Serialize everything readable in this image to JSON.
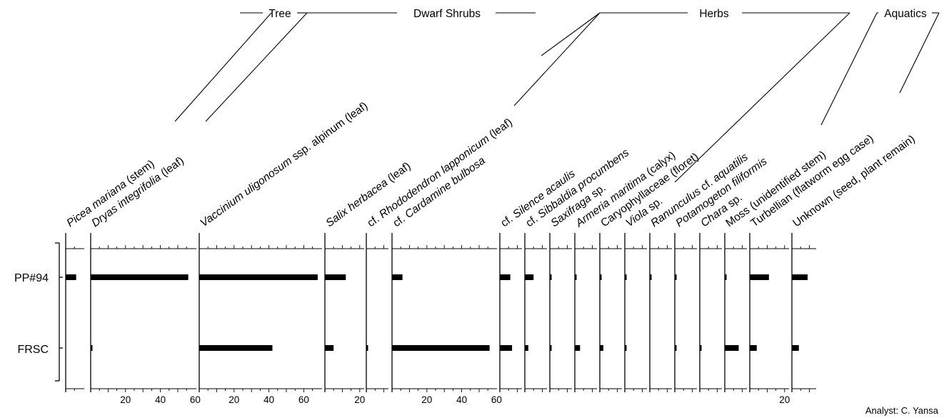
{
  "chart_data": {
    "type": "bar",
    "orientation": "horizontal",
    "samples": [
      "PP#94",
      "FRSC"
    ],
    "groups": [
      {
        "label": "Tree"
      },
      {
        "label": "Dwarf Shrubs"
      },
      {
        "label": "Herbs"
      },
      {
        "label": "Aquatics"
      }
    ],
    "taxa": [
      {
        "parts": [
          [
            "Picea mariana",
            true
          ],
          [
            " (stem)",
            false
          ]
        ],
        "group": 0,
        "values": [
          6,
          0
        ],
        "axis_max": 12,
        "tick_labels": []
      },
      {
        "parts": [
          [
            "Dryas integrifolia",
            true
          ],
          [
            " (leaf)",
            false
          ]
        ],
        "group": 1,
        "values": [
          56,
          1
        ],
        "axis_max": 65,
        "tick_labels": [
          "20",
          "40",
          "60"
        ]
      },
      {
        "parts": [
          [
            "Vaccinium uligonosum",
            true
          ],
          [
            " ssp. alpinum (leaf)",
            false
          ]
        ],
        "group": 1,
        "values": [
          68,
          42
        ],
        "axis_max": 76,
        "tick_labels": [
          "20",
          "40",
          "60"
        ]
      },
      {
        "parts": [
          [
            "Salix herbacea",
            true
          ],
          [
            " (leaf)",
            false
          ]
        ],
        "group": 1,
        "values": [
          12,
          5
        ],
        "axis_max": 23,
        "tick_labels": [
          "20"
        ]
      },
      {
        "parts": [
          [
            "cf. ",
            false
          ],
          [
            "Rhododendron lapponicum",
            true
          ],
          [
            " (leaf)",
            false
          ]
        ],
        "group": 1,
        "values": [
          0,
          1
        ],
        "axis_max": 12,
        "tick_labels": []
      },
      {
        "parts": [
          [
            "cf. ",
            false
          ],
          [
            "Cardamine bulbosa",
            true
          ]
        ],
        "group": 2,
        "values": [
          6,
          56
        ],
        "axis_max": 64,
        "tick_labels": [
          "20",
          "40",
          "60"
        ]
      },
      {
        "parts": [
          [
            "cf. ",
            false
          ],
          [
            "Silence acaulis",
            true
          ]
        ],
        "group": 2,
        "values": [
          6,
          7
        ],
        "axis_max": 12,
        "tick_labels": []
      },
      {
        "parts": [
          [
            "cf. ",
            false
          ],
          [
            "Sibbaldia procumbens",
            true
          ]
        ],
        "group": 2,
        "values": [
          5,
          2
        ],
        "axis_max": 12,
        "tick_labels": []
      },
      {
        "parts": [
          [
            "Saxifraga",
            true
          ],
          [
            " sp.",
            false
          ]
        ],
        "group": 2,
        "values": [
          1,
          1
        ],
        "axis_max": 12,
        "tick_labels": []
      },
      {
        "parts": [
          [
            "Armeria maritima",
            true
          ],
          [
            " (calyx)",
            false
          ]
        ],
        "group": 2,
        "values": [
          1,
          3
        ],
        "axis_max": 12,
        "tick_labels": []
      },
      {
        "parts": [
          [
            "Caryophyllaceae (floret)",
            false
          ]
        ],
        "group": 2,
        "values": [
          1,
          2
        ],
        "axis_max": 12,
        "tick_labels": []
      },
      {
        "parts": [
          [
            "Viola",
            true
          ],
          [
            " sp.",
            false
          ]
        ],
        "group": 2,
        "values": [
          1,
          1
        ],
        "axis_max": 12,
        "tick_labels": []
      },
      {
        "parts": [
          [
            "Ranunculus",
            true
          ],
          [
            " cf. ",
            false
          ],
          [
            "aquatilis",
            true
          ]
        ],
        "group": 2,
        "values": [
          1,
          0
        ],
        "axis_max": 12,
        "tick_labels": []
      },
      {
        "parts": [
          [
            "Potamogeton filiformis",
            true
          ]
        ],
        "group": 3,
        "values": [
          1,
          1
        ],
        "axis_max": 12,
        "tick_labels": []
      },
      {
        "parts": [
          [
            "Chara",
            true
          ],
          [
            " sp.",
            false
          ]
        ],
        "group": 3,
        "values": [
          0,
          1
        ],
        "axis_max": 12,
        "tick_labels": []
      },
      {
        "parts": [
          [
            "Moss (unidentified stem)",
            false
          ]
        ],
        "group": 3,
        "values": [
          1,
          8
        ],
        "axis_max": 12,
        "tick_labels": []
      },
      {
        "parts": [
          [
            "Turbellian (flatworm egg case)",
            false
          ]
        ],
        "group": 3,
        "values": [
          11,
          4
        ],
        "axis_max": 23,
        "tick_labels": [
          "20"
        ]
      },
      {
        "parts": [
          [
            "Unknown (seed, plant remain)",
            false
          ]
        ],
        "group": 3,
        "values": [
          9,
          4
        ],
        "axis_max": 12,
        "tick_labels": []
      }
    ],
    "credit": "Analyst: C. Yansa"
  },
  "colors": {
    "ink": "#000000",
    "bar": "#000000",
    "background": "#ffffff"
  }
}
